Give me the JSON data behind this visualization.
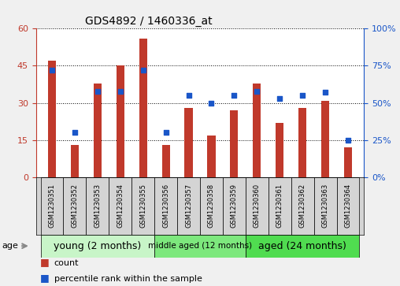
{
  "title": "GDS4892 / 1460336_at",
  "categories": [
    "GSM1230351",
    "GSM1230352",
    "GSM1230353",
    "GSM1230354",
    "GSM1230355",
    "GSM1230356",
    "GSM1230357",
    "GSM1230358",
    "GSM1230359",
    "GSM1230360",
    "GSM1230361",
    "GSM1230362",
    "GSM1230363",
    "GSM1230364"
  ],
  "counts": [
    47,
    13,
    38,
    45,
    56,
    13,
    28,
    17,
    27,
    38,
    22,
    28,
    31,
    12
  ],
  "percentiles": [
    72,
    30,
    58,
    58,
    72,
    30,
    55,
    50,
    55,
    58,
    53,
    55,
    57,
    25
  ],
  "ylim_left": [
    0,
    60
  ],
  "ylim_right": [
    0,
    100
  ],
  "yticks_left": [
    0,
    15,
    30,
    45,
    60
  ],
  "yticks_right": [
    0,
    25,
    50,
    75,
    100
  ],
  "bar_color": "#c0392b",
  "dot_color": "#1a56c8",
  "plot_bg": "#ffffff",
  "gray_label_bg": "#d4d4d4",
  "groups": [
    {
      "label": "young (2 months)",
      "start": 0,
      "end": 4,
      "color": "#c8f5c8"
    },
    {
      "label": "middle aged (12 months)",
      "start": 5,
      "end": 8,
      "color": "#7de87d"
    },
    {
      "label": "aged (24 months)",
      "start": 9,
      "end": 13,
      "color": "#50dc50"
    }
  ],
  "group_dividers": [
    4.5,
    8.5
  ],
  "age_label": "age",
  "legend_count": "count",
  "legend_pct": "percentile rank within the sample",
  "bar_width": 0.35
}
